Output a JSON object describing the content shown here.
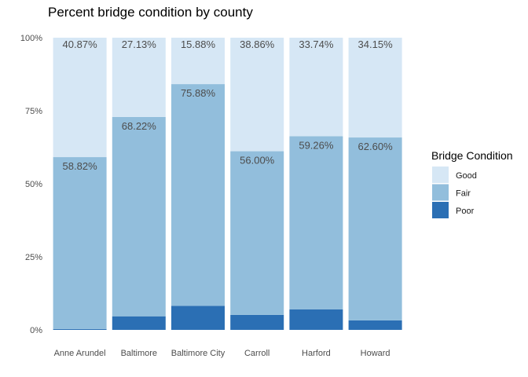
{
  "chart_data": {
    "type": "bar",
    "stacked": true,
    "title": "Percent bridge condition by county",
    "xlabel": "",
    "ylabel": "",
    "ylim": [
      0,
      100
    ],
    "y_ticks": [
      "0%",
      "25%",
      "50%",
      "75%",
      "100%"
    ],
    "y_tick_values": [
      0,
      25,
      50,
      75,
      100
    ],
    "categories": [
      "Anne Arundel",
      "Baltimore",
      "Baltimore City",
      "Carroll",
      "Harford",
      "Howard"
    ],
    "series": [
      {
        "name": "Poor",
        "color": "#2b6fb4",
        "values": [
          0.31,
          4.65,
          8.24,
          5.14,
          7.0,
          3.25
        ]
      },
      {
        "name": "Fair",
        "color": "#92bedc",
        "values": [
          58.82,
          68.22,
          75.88,
          56.0,
          59.26,
          62.6
        ]
      },
      {
        "name": "Good",
        "color": "#d6e7f5",
        "values": [
          40.87,
          27.13,
          15.88,
          38.86,
          33.74,
          34.15
        ]
      }
    ],
    "data_labels": {
      "Good": [
        "40.87%",
        "27.13%",
        "15.88%",
        "38.86%",
        "33.74%",
        "34.15%"
      ],
      "Fair": [
        "58.82%",
        "68.22%",
        "75.88%",
        "56.00%",
        "59.26%",
        "62.60%"
      ]
    },
    "legend": {
      "title": "Bridge Condition",
      "position": "right",
      "items": [
        {
          "label": "Good",
          "color": "#d6e7f5"
        },
        {
          "label": "Fair",
          "color": "#92bedc"
        },
        {
          "label": "Poor",
          "color": "#2b6fb4"
        }
      ]
    },
    "grid": false
  }
}
